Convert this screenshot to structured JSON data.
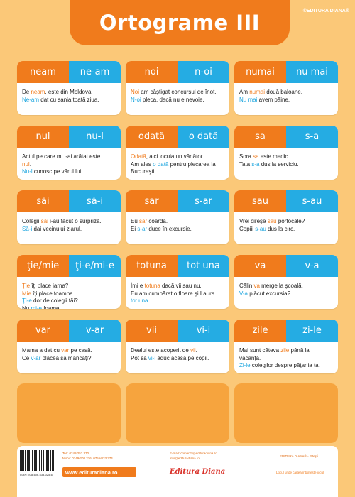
{
  "title": "Ortograme III",
  "brand": "©EDITURA DIANA®",
  "cards": [
    {
      "w1": "neam",
      "w2": "ne-am",
      "lines": [
        [
          [
            "De ",
            ""
          ],
          [
            "neam",
            "o"
          ],
          [
            ", este din Moldova.",
            ""
          ]
        ],
        [
          [
            "Ne-am",
            "b"
          ],
          [
            " dat cu sania toată ziua.",
            ""
          ]
        ]
      ]
    },
    {
      "w1": "noi",
      "w2": "n-oi",
      "lines": [
        [
          [
            "Noi",
            "o"
          ],
          [
            " am câştigat concursul de înot.",
            ""
          ]
        ],
        [
          [
            "N-oi",
            "b"
          ],
          [
            " pleca, dacă nu e nevoie.",
            ""
          ]
        ]
      ]
    },
    {
      "w1": "numai",
      "w2": "nu mai",
      "lines": [
        [
          [
            "Am ",
            ""
          ],
          [
            "numai",
            "o"
          ],
          [
            " două baloane.",
            ""
          ]
        ],
        [
          [
            "Nu mai",
            "b"
          ],
          [
            " avem pâine.",
            ""
          ]
        ]
      ]
    },
    {
      "w1": "nul",
      "w2": "nu-l",
      "lines": [
        [
          [
            "Actul pe care mi l-ai arătat este",
            ""
          ]
        ],
        [
          [
            "nul",
            "o"
          ],
          [
            ".",
            ""
          ]
        ],
        [
          [
            "Nu-l",
            "b"
          ],
          [
            " cunosc pe vărul lui.",
            ""
          ]
        ]
      ]
    },
    {
      "w1": "odată",
      "w2": "o dată",
      "lines": [
        [
          [
            "Odată",
            "o"
          ],
          [
            ", aici locuia un vânător.",
            ""
          ]
        ],
        [
          [
            "Am ales ",
            ""
          ],
          [
            "o dată",
            "b"
          ],
          [
            " pentru plecarea la",
            ""
          ]
        ],
        [
          [
            "Bucureşti.",
            ""
          ]
        ]
      ]
    },
    {
      "w1": "sa",
      "w2": "s-a",
      "lines": [
        [
          [
            "Sora ",
            ""
          ],
          [
            "sa",
            "o"
          ],
          [
            " este medic.",
            ""
          ]
        ],
        [
          [
            "Tata ",
            ""
          ],
          [
            "s-a",
            "b"
          ],
          [
            " dus la serviciu.",
            ""
          ]
        ]
      ]
    },
    {
      "w1": "săi",
      "w2": "să-i",
      "lines": [
        [
          [
            "Colegii ",
            ""
          ],
          [
            "săi",
            "o"
          ],
          [
            " i-au făcut o surpriză.",
            ""
          ]
        ],
        [
          [
            "Să-i",
            "b"
          ],
          [
            " dai vecinului ziarul.",
            ""
          ]
        ]
      ]
    },
    {
      "w1": "sar",
      "w2": "s-ar",
      "lines": [
        [
          [
            "Eu ",
            ""
          ],
          [
            "sar",
            "o"
          ],
          [
            " coarda.",
            ""
          ]
        ],
        [
          [
            "Ei ",
            ""
          ],
          [
            "s-ar",
            "b"
          ],
          [
            " duce în excursie.",
            ""
          ]
        ]
      ]
    },
    {
      "w1": "sau",
      "w2": "s-au",
      "lines": [
        [
          [
            "Vrei cireşe ",
            ""
          ],
          [
            "sau",
            "o"
          ],
          [
            " portocale?",
            ""
          ]
        ],
        [
          [
            "Copiii ",
            ""
          ],
          [
            "s-au",
            "b"
          ],
          [
            " dus la circ.",
            ""
          ]
        ]
      ]
    },
    {
      "w1": "ţie/mie",
      "w2": "ţi-e/mi-e",
      "lines": [
        [
          [
            "Ţie",
            "o"
          ],
          [
            " îţi place iarna?",
            ""
          ]
        ],
        [
          [
            "Mie",
            "o"
          ],
          [
            " îţi place toamna.",
            ""
          ]
        ],
        [
          [
            "Ţi-e",
            "b"
          ],
          [
            " dor de colegii tăi?",
            ""
          ]
        ],
        [
          [
            "Nu ",
            ""
          ],
          [
            "mi-e",
            "b"
          ],
          [
            " foame.",
            ""
          ]
        ]
      ]
    },
    {
      "w1": "totuna",
      "w2": "tot una",
      "lines": [
        [
          [
            "Îmi e ",
            ""
          ],
          [
            "totuna",
            "o"
          ],
          [
            " dacă vii sau nu.",
            ""
          ]
        ],
        [
          [
            "Eu am cumpărat o floare şi Laura",
            ""
          ]
        ],
        [
          [
            "tot una",
            "b"
          ],
          [
            ".",
            ""
          ]
        ]
      ]
    },
    {
      "w1": "va",
      "w2": "v-a",
      "lines": [
        [
          [
            "Călin ",
            ""
          ],
          [
            "va",
            "o"
          ],
          [
            " merge la şcoală.",
            ""
          ]
        ],
        [
          [
            "V-a",
            "b"
          ],
          [
            " plăcut excursia?",
            ""
          ]
        ]
      ]
    },
    {
      "w1": "var",
      "w2": "v-ar",
      "lines": [
        [
          [
            "Mama a dat cu ",
            ""
          ],
          [
            "var",
            "o"
          ],
          [
            " pe casă.",
            ""
          ]
        ],
        [
          [
            "Ce ",
            ""
          ],
          [
            "v-ar",
            "b"
          ],
          [
            " plăcea să mâncaţi?",
            ""
          ]
        ]
      ]
    },
    {
      "w1": "vii",
      "w2": "vi-i",
      "lines": [
        [
          [
            "Dealul este acoperit de ",
            ""
          ],
          [
            "vii",
            "o"
          ],
          [
            ".",
            ""
          ]
        ],
        [
          [
            "Pot sa ",
            ""
          ],
          [
            "vi-i",
            "b"
          ],
          [
            " aduc acasă pe copii.",
            ""
          ]
        ]
      ]
    },
    {
      "w1": "zile",
      "w2": "zi-le",
      "lines": [
        [
          [
            "Mai sunt câteva ",
            ""
          ],
          [
            "zile",
            "o"
          ],
          [
            " până la",
            ""
          ]
        ],
        [
          [
            "vacanţă.",
            ""
          ]
        ],
        [
          [
            "Zi-le",
            "b"
          ],
          [
            " colegilor despre păţania ta.",
            ""
          ]
        ]
      ]
    }
  ],
  "footer": {
    "isbn": "ISBN: 978-606-633-025-6",
    "tel": "Tel.: 0248/253 370",
    "mobil": "Mobil: 0749/208 216; 0755/033 374",
    "email1": "E-mail: comenzi@edituradiana.ro",
    "email2": "info@edituradiana.ro",
    "publisher": "EDITURA DIANA® - Piteşti",
    "url": "www.edituradiana.ro",
    "logo": "Editura Diana",
    "slogan": "Locul unde cartea întâlneşte jocul"
  },
  "colors": {
    "orange": "#f07b1c",
    "blue": "#25ace3",
    "background": "#fbc878",
    "blank": "#f6a43e"
  }
}
